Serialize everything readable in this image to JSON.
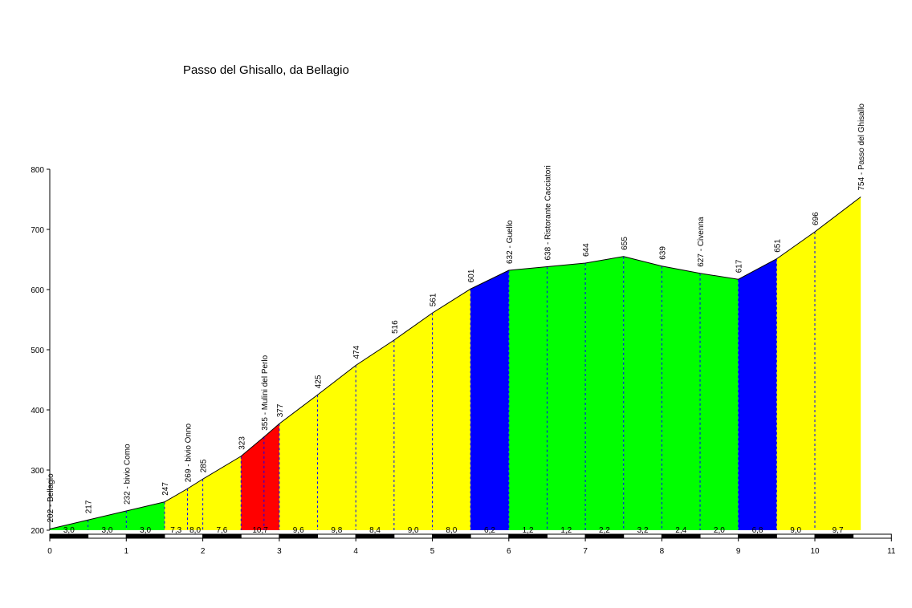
{
  "chart_data": {
    "type": "area",
    "title": "Passo del Ghisallo, da Bellagio",
    "xlabel": "",
    "ylabel": "",
    "xlim": [
      0,
      11
    ],
    "ylim": [
      200,
      800
    ],
    "x_ticks": [
      0,
      1,
      2,
      3,
      4,
      5,
      6,
      7,
      8,
      9,
      10,
      11
    ],
    "y_ticks": [
      200,
      300,
      400,
      500,
      600,
      700,
      800
    ],
    "profile": [
      {
        "x": 0,
        "y": 202,
        "label": "202 - Bellagio"
      },
      {
        "x": 0.5,
        "y": 217,
        "label": "217"
      },
      {
        "x": 1.0,
        "y": 232,
        "label": "232 - bivio Como"
      },
      {
        "x": 1.5,
        "y": 247,
        "label": "247"
      },
      {
        "x": 1.8,
        "y": 269,
        "label": "269 - bivio Onno"
      },
      {
        "x": 2.0,
        "y": 285,
        "label": "285"
      },
      {
        "x": 2.5,
        "y": 323,
        "label": "323"
      },
      {
        "x": 2.8,
        "y": 355,
        "label": "355 - Mulini del Perlo"
      },
      {
        "x": 3.0,
        "y": 377,
        "label": "377"
      },
      {
        "x": 3.5,
        "y": 425,
        "label": "425"
      },
      {
        "x": 4.0,
        "y": 474,
        "label": "474"
      },
      {
        "x": 4.5,
        "y": 516,
        "label": "516"
      },
      {
        "x": 5.0,
        "y": 561,
        "label": "561"
      },
      {
        "x": 5.5,
        "y": 601,
        "label": "601"
      },
      {
        "x": 6.0,
        "y": 632,
        "label": "632 - Guello"
      },
      {
        "x": 6.5,
        "y": 638,
        "label": "638 - Ristorante Cacciatori"
      },
      {
        "x": 7.0,
        "y": 644,
        "label": "644"
      },
      {
        "x": 7.5,
        "y": 655,
        "label": "655"
      },
      {
        "x": 8.0,
        "y": 639,
        "label": "639"
      },
      {
        "x": 8.5,
        "y": 627,
        "label": "627 - Civenna"
      },
      {
        "x": 9.0,
        "y": 617,
        "label": "617"
      },
      {
        "x": 9.5,
        "y": 651,
        "label": "651"
      },
      {
        "x": 10.0,
        "y": 696,
        "label": "696"
      },
      {
        "x": 10.6,
        "y": 754,
        "label": "754 - Passo del Ghisallo"
      }
    ],
    "segments": [
      {
        "from": 0,
        "to": 0.5,
        "grade": "3,0",
        "color": "#00ff00"
      },
      {
        "from": 0.5,
        "to": 1.0,
        "grade": "3,0",
        "color": "#00ff00"
      },
      {
        "from": 1.0,
        "to": 1.5,
        "grade": "3,0",
        "color": "#00ff00"
      },
      {
        "from": 1.5,
        "to": 1.8,
        "grade": "7,3",
        "color": "#ffff00"
      },
      {
        "from": 1.8,
        "to": 2.0,
        "grade": "8,0",
        "color": "#ffff00"
      },
      {
        "from": 2.0,
        "to": 2.5,
        "grade": "7,6",
        "color": "#ffff00"
      },
      {
        "from": 2.5,
        "to": 3.0,
        "grade": "10,7",
        "color": "#ff0000"
      },
      {
        "from": 3.0,
        "to": 3.5,
        "grade": "9,6",
        "color": "#ffff00"
      },
      {
        "from": 3.5,
        "to": 4.0,
        "grade": "9,8",
        "color": "#ffff00"
      },
      {
        "from": 4.0,
        "to": 4.5,
        "grade": "8,4",
        "color": "#ffff00"
      },
      {
        "from": 4.5,
        "to": 5.0,
        "grade": "9,0",
        "color": "#ffff00"
      },
      {
        "from": 5.0,
        "to": 5.5,
        "grade": "8,0",
        "color": "#ffff00"
      },
      {
        "from": 5.5,
        "to": 6.0,
        "grade": "6,2",
        "color": "#0000ff"
      },
      {
        "from": 6.0,
        "to": 6.5,
        "grade": "1,2",
        "color": "#00ff00"
      },
      {
        "from": 6.5,
        "to": 7.0,
        "grade": "1,2",
        "color": "#00ff00"
      },
      {
        "from": 7.0,
        "to": 7.5,
        "grade": "2,2",
        "color": "#00ff00"
      },
      {
        "from": 7.5,
        "to": 8.0,
        "grade": "3,2",
        "color": "#00ff00"
      },
      {
        "from": 8.0,
        "to": 8.5,
        "grade": "2,4",
        "color": "#00ff00"
      },
      {
        "from": 8.5,
        "to": 9.0,
        "grade": "2,0",
        "color": "#00ff00"
      },
      {
        "from": 9.0,
        "to": 9.5,
        "grade": "6,8",
        "color": "#0000ff"
      },
      {
        "from": 9.5,
        "to": 10.0,
        "grade": "9,0",
        "color": "#ffff00"
      },
      {
        "from": 10.0,
        "to": 10.6,
        "grade": "9,7",
        "color": "#ffff00"
      }
    ],
    "grid": false
  }
}
